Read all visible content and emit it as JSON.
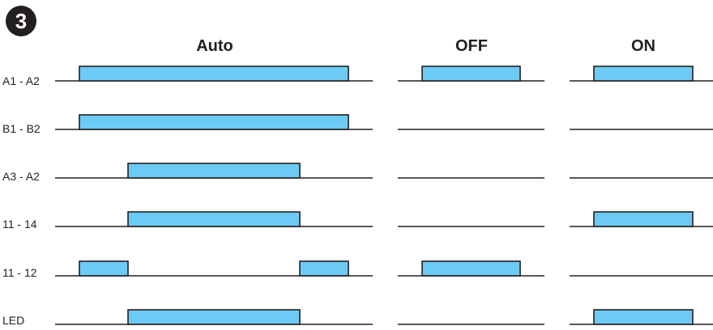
{
  "step_number": "3",
  "columns": [
    {
      "id": "auto",
      "title": "Auto"
    },
    {
      "id": "off",
      "title": "OFF"
    },
    {
      "id": "on",
      "title": "ON"
    }
  ],
  "rows": [
    {
      "label": "A1 - A2",
      "pulses": {
        "auto": [
          [
            0.0,
            1.0
          ]
        ],
        "off": [
          [
            0.0,
            1.0
          ]
        ],
        "on": [
          [
            0.0,
            1.0
          ]
        ]
      }
    },
    {
      "label": "B1 - B2",
      "pulses": {
        "auto": [
          [
            0.0,
            1.0
          ]
        ],
        "off": [],
        "on": []
      }
    },
    {
      "label": "A3 - A2",
      "pulses": {
        "auto": [
          [
            0.18,
            0.82
          ]
        ],
        "off": [],
        "on": []
      }
    },
    {
      "label": "11 - 14",
      "pulses": {
        "auto": [
          [
            0.18,
            0.82
          ]
        ],
        "off": [],
        "on": [
          [
            0.0,
            1.0
          ]
        ]
      }
    },
    {
      "label": "11 - 12",
      "pulses": {
        "auto": [
          [
            0.0,
            0.18
          ],
          [
            0.82,
            1.0
          ]
        ],
        "off": [
          [
            0.0,
            1.0
          ]
        ],
        "on": []
      }
    },
    {
      "label": "LED",
      "pulses": {
        "auto": [
          [
            0.18,
            0.82
          ]
        ],
        "off": [],
        "on": [
          [
            0.0,
            1.0
          ]
        ]
      }
    }
  ],
  "colors": {
    "pulse_fill": "#6ccbf4",
    "line": "#231f20",
    "badge": "#231f20"
  }
}
